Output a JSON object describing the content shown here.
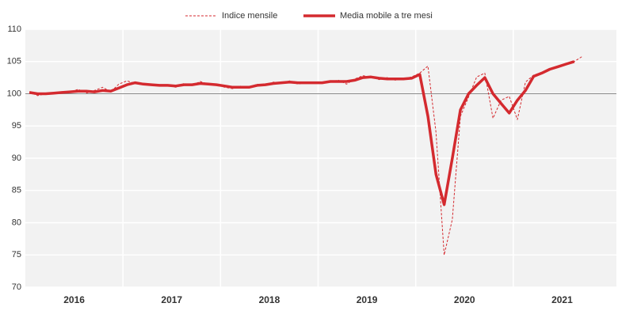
{
  "chart_data": {
    "type": "line",
    "categories": [
      "2016",
      "2017",
      "2018",
      "2019",
      "2020",
      "2021"
    ],
    "series": [
      {
        "name": "Indice mensile",
        "color": "#d42a2f",
        "style": "dashed",
        "values": [
          [
            100.3,
            99.7,
            100.0,
            100.2,
            100.3,
            100.2,
            100.7,
            100.1,
            100.5,
            101.0,
            100.3,
            101.5
          ],
          [
            102.0,
            101.6,
            101.4,
            101.5,
            101.2,
            101.3,
            101.0,
            101.6,
            101.3,
            101.9,
            101.5,
            101.4
          ],
          [
            101.0,
            100.8,
            101.2,
            101.0,
            101.5,
            101.3,
            101.8,
            101.6,
            102.0,
            101.5,
            101.7,
            101.8
          ],
          [
            101.6,
            101.9,
            102.1,
            101.5,
            102.3,
            102.8,
            102.6,
            102.2,
            102.5,
            102.1,
            102.3,
            102.6
          ],
          [
            103.2,
            104.3,
            94.0,
            75.0,
            80.5,
            96.5,
            99.5,
            102.6,
            103.2,
            96.2,
            99.0,
            99.6
          ],
          [
            96.0,
            101.8,
            102.9,
            103.3,
            103.8,
            104.2,
            104.6,
            105.0,
            105.8
          ]
        ]
      },
      {
        "name": "Media mobile a tre mesi",
        "color": "#d42a2f",
        "style": "thick",
        "values": [
          [
            100.2,
            100.0,
            100.0,
            100.1,
            100.2,
            100.3,
            100.4,
            100.4,
            100.3,
            100.5,
            100.4,
            100.9
          ],
          [
            101.4,
            101.7,
            101.5,
            101.4,
            101.3,
            101.3,
            101.2,
            101.4,
            101.4,
            101.6,
            101.5,
            101.4
          ],
          [
            101.2,
            101.0,
            101.0,
            101.0,
            101.3,
            101.4,
            101.6,
            101.7,
            101.8,
            101.7,
            101.7,
            101.7
          ],
          [
            101.7,
            101.9,
            101.9,
            101.9,
            102.1,
            102.5,
            102.6,
            102.4,
            102.3,
            102.3,
            102.3,
            102.4
          ],
          [
            103.0,
            96.5,
            87.5,
            82.8,
            90.0,
            97.5,
            100.0,
            101.3,
            102.5,
            100.0,
            98.5,
            97.0
          ],
          [
            99.0,
            100.5,
            102.7,
            103.2,
            103.8,
            104.2,
            104.6,
            105.0
          ]
        ]
      }
    ],
    "ylim": [
      70,
      110
    ],
    "yticks": [
      70,
      75,
      80,
      85,
      90,
      95,
      100,
      105,
      110
    ],
    "reference_line": 100,
    "grid": true
  }
}
